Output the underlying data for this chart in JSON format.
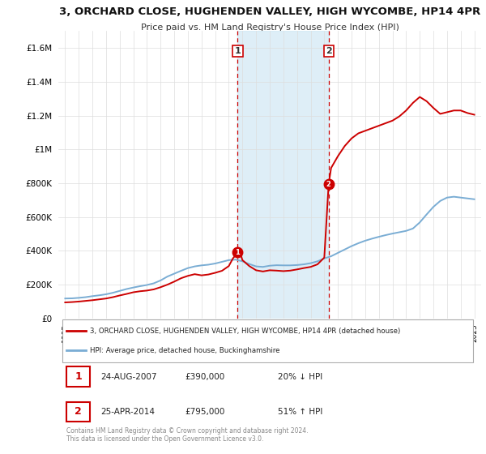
{
  "title": "3, ORCHARD CLOSE, HUGHENDEN VALLEY, HIGH WYCOMBE, HP14 4PR",
  "subtitle": "Price paid vs. HM Land Registry's House Price Index (HPI)",
  "background_color": "#ffffff",
  "plot_bg_color": "#ffffff",
  "legend_line1": "3, ORCHARD CLOSE, HUGHENDEN VALLEY, HIGH WYCOMBE, HP14 4PR (detached house)",
  "legend_line2": "HPI: Average price, detached house, Buckinghamshire",
  "footer": "Contains HM Land Registry data © Crown copyright and database right 2024.\nThis data is licensed under the Open Government Licence v3.0.",
  "sale1_date": "24-AUG-2007",
  "sale1_price": "£390,000",
  "sale1_hpi": "20% ↓ HPI",
  "sale2_date": "25-APR-2014",
  "sale2_price": "£795,000",
  "sale2_hpi": "51% ↑ HPI",
  "red_color": "#cc0000",
  "blue_color": "#7aadd4",
  "shade_color": "#d0e8f5",
  "ylim": [
    0,
    1700000
  ],
  "yticks": [
    0,
    200000,
    400000,
    600000,
    800000,
    1000000,
    1200000,
    1400000,
    1600000
  ],
  "xlim_start": 1994.5,
  "xlim_end": 2025.5,
  "sale1_x": 2007.65,
  "sale1_y": 390000,
  "sale2_x": 2014.32,
  "sale2_y": 795000,
  "hpi_years": [
    1995,
    1995.5,
    1996,
    1996.5,
    1997,
    1997.5,
    1998,
    1998.5,
    1999,
    1999.5,
    2000,
    2000.5,
    2001,
    2001.5,
    2002,
    2002.5,
    2003,
    2003.5,
    2004,
    2004.5,
    2005,
    2005.5,
    2006,
    2006.5,
    2007,
    2007.5,
    2008,
    2008.5,
    2009,
    2009.5,
    2010,
    2010.5,
    2011,
    2011.5,
    2012,
    2012.5,
    2013,
    2013.5,
    2014,
    2014.5,
    2015,
    2015.5,
    2016,
    2016.5,
    2017,
    2017.5,
    2018,
    2018.5,
    2019,
    2019.5,
    2020,
    2020.5,
    2021,
    2021.5,
    2022,
    2022.5,
    2023,
    2023.5,
    2024,
    2024.5,
    2025
  ],
  "hpi_values": [
    118000,
    119000,
    122000,
    126000,
    132000,
    137000,
    143000,
    152000,
    163000,
    174000,
    183000,
    191000,
    198000,
    208000,
    225000,
    248000,
    265000,
    282000,
    298000,
    308000,
    314000,
    318000,
    325000,
    335000,
    345000,
    348000,
    338000,
    322000,
    308000,
    305000,
    312000,
    315000,
    314000,
    314000,
    316000,
    320000,
    327000,
    338000,
    355000,
    368000,
    388000,
    408000,
    428000,
    445000,
    460000,
    472000,
    483000,
    493000,
    502000,
    510000,
    518000,
    532000,
    568000,
    615000,
    660000,
    695000,
    715000,
    720000,
    715000,
    710000,
    705000
  ],
  "red_years": [
    1995,
    1995.5,
    1996,
    1996.5,
    1997,
    1997.5,
    1998,
    1998.5,
    1999,
    1999.5,
    2000,
    2000.5,
    2001,
    2001.5,
    2002,
    2002.5,
    2003,
    2003.5,
    2004,
    2004.5,
    2005,
    2005.5,
    2006,
    2006.5,
    2007,
    2007.3,
    2007.65,
    2007.9,
    2008,
    2008.5,
    2009,
    2009.5,
    2010,
    2010.5,
    2011,
    2011.5,
    2012,
    2012.5,
    2013,
    2013.5,
    2014,
    2014.32,
    2014.5,
    2015,
    2015.5,
    2016,
    2016.5,
    2017,
    2017.5,
    2018,
    2018.5,
    2019,
    2019.5,
    2020,
    2020.5,
    2021,
    2021.5,
    2022,
    2022.5,
    2023,
    2023.5,
    2024,
    2024.5,
    2025
  ],
  "red_values": [
    95000,
    97000,
    100000,
    104000,
    108000,
    113000,
    118000,
    126000,
    136000,
    145000,
    155000,
    161000,
    165000,
    172000,
    185000,
    200000,
    218000,
    238000,
    252000,
    262000,
    255000,
    260000,
    270000,
    282000,
    310000,
    355000,
    390000,
    370000,
    345000,
    310000,
    285000,
    278000,
    285000,
    283000,
    280000,
    283000,
    290000,
    298000,
    305000,
    320000,
    360000,
    795000,
    890000,
    960000,
    1020000,
    1065000,
    1095000,
    1110000,
    1125000,
    1140000,
    1155000,
    1170000,
    1195000,
    1230000,
    1275000,
    1310000,
    1285000,
    1245000,
    1210000,
    1220000,
    1230000,
    1230000,
    1215000,
    1205000
  ]
}
